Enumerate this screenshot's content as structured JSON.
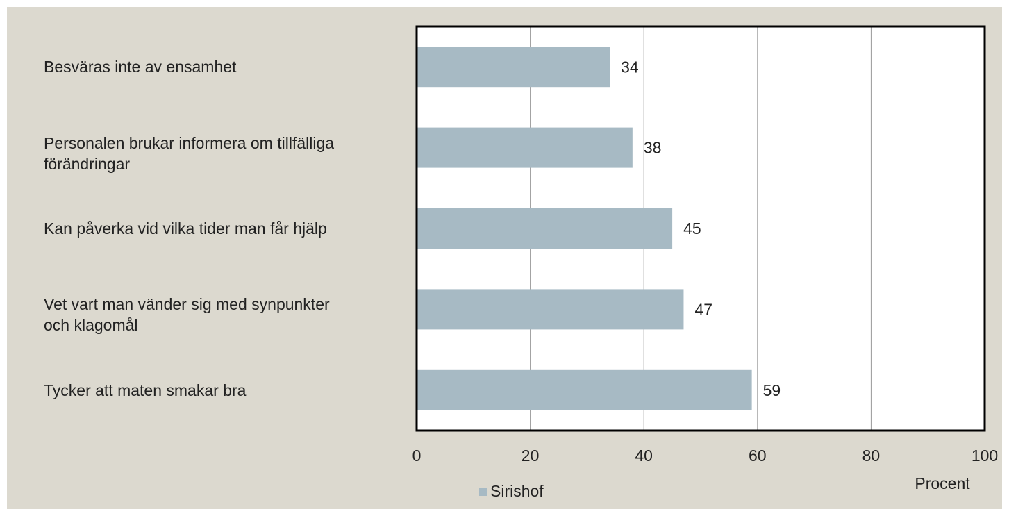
{
  "chart_data": {
    "type": "hbar",
    "categories": [
      "Besväras inte av ensamhet",
      "Personalen brukar informera om tillfälliga förändringar",
      "Kan påverka vid vilka tider man får hjälp",
      "Vet vart man vänder sig med synpunkter och klagomål",
      "Tycker att maten smakar bra"
    ],
    "series": [
      {
        "name": "Sirishof",
        "color": "#a7bac4",
        "values": [
          34,
          38,
          45,
          47,
          59
        ]
      }
    ],
    "xlim": [
      0,
      100
    ],
    "xticks": [
      0,
      20,
      40,
      60,
      80,
      100
    ],
    "x_label": "Procent",
    "grid": true,
    "data_labels": true
  }
}
